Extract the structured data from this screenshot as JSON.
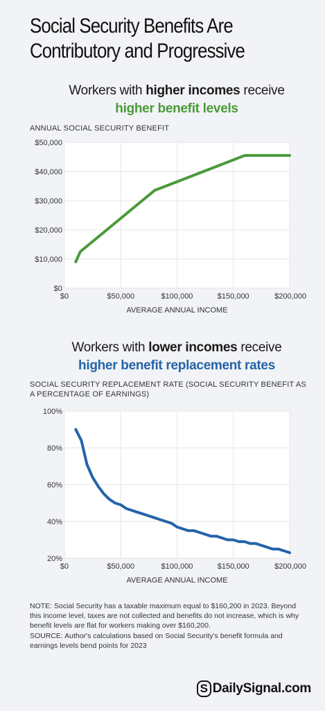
{
  "title": "Social Security Benefits Are Contributory and Progressive",
  "section1": {
    "subhead_pre": "Workers with ",
    "subhead_bold": "higher incomes",
    "subhead_post": " receive",
    "subhead_line2": "higher benefit levels",
    "axis_title": "ANNUAL SOCIAL SECURITY BENEFIT"
  },
  "section2": {
    "subhead_pre": "Workers with ",
    "subhead_bold": "lower incomes",
    "subhead_post": " receive",
    "subhead_line2": "higher benefit replacement rates",
    "axis_title": "SOCIAL SECURITY REPLACEMENT RATE (SOCIAL SECURITY BENEFIT AS A PERCENTAGE OF EARNINGS)"
  },
  "note": "NOTE: Social Security has a taxable maximum equal to $160,200 in 2023. Beyond this income level, taxes are not collected and benefits do not increase, which is why benefit levels are flat for workers making over $160,200.",
  "source": "SOURCE: Author's calculations based on Social Security's benefit formula and earnings levels bend points for 2023",
  "brand": {
    "mark": "S",
    "name": "DailySignal.com"
  },
  "colors": {
    "green": "#4b9a3a",
    "blue": "#2563a9",
    "grid": "#e6e6e6"
  },
  "chart_data": [
    {
      "type": "line",
      "title": "Workers with higher incomes receive higher benefit levels",
      "xlabel": "AVERAGE ANNUAL INCOME",
      "ylabel": "ANNUAL SOCIAL SECURITY BENEFIT",
      "xlim": [
        0,
        200000
      ],
      "ylim": [
        0,
        50000
      ],
      "x_ticks": [
        0,
        50000,
        100000,
        150000,
        200000
      ],
      "x_tick_labels": [
        "$0",
        "$50,000",
        "$100,000",
        "$150,000",
        "$200,000"
      ],
      "y_ticks": [
        0,
        10000,
        20000,
        30000,
        40000,
        50000
      ],
      "y_tick_labels": [
        "$0",
        "$10,000",
        "$20,000",
        "$30,000",
        "$40,000",
        "$50,000"
      ],
      "grid": true,
      "series": [
        {
          "color": "#4b9a3a",
          "points": [
            [
              10000,
              9000
            ],
            [
              14000,
              12500
            ],
            [
              80000,
              33500
            ],
            [
              160200,
              45500
            ],
            [
              200000,
              45500
            ]
          ]
        }
      ]
    },
    {
      "type": "line",
      "title": "Workers with lower incomes receive higher benefit replacement rates",
      "xlabel": "AVERAGE ANNUAL INCOME",
      "ylabel": "SOCIAL SECURITY REPLACEMENT RATE (SOCIAL SECURITY BENEFIT AS A PERCENTAGE OF EARNINGS)",
      "xlim": [
        0,
        200000
      ],
      "ylim": [
        20,
        100
      ],
      "x_ticks": [
        0,
        50000,
        100000,
        150000,
        200000
      ],
      "x_tick_labels": [
        "$0",
        "$50,000",
        "$100,000",
        "$150,000",
        "$200,000"
      ],
      "y_ticks": [
        20,
        40,
        60,
        80,
        100
      ],
      "y_tick_labels": [
        "20%",
        "40%",
        "60%",
        "80%",
        "100%"
      ],
      "grid": true,
      "series": [
        {
          "color": "#2563a9",
          "points": [
            [
              10000,
              90
            ],
            [
              15000,
              84
            ],
            [
              20000,
              71
            ],
            [
              25000,
              64
            ],
            [
              30000,
              59
            ],
            [
              35000,
              55
            ],
            [
              40000,
              52
            ],
            [
              45000,
              50
            ],
            [
              50000,
              49
            ],
            [
              55000,
              47
            ],
            [
              60000,
              46
            ],
            [
              65000,
              45
            ],
            [
              70000,
              44
            ],
            [
              75000,
              43
            ],
            [
              80000,
              42
            ],
            [
              85000,
              41
            ],
            [
              90000,
              40
            ],
            [
              95000,
              39
            ],
            [
              100000,
              37
            ],
            [
              105000,
              36
            ],
            [
              110000,
              35
            ],
            [
              115000,
              35
            ],
            [
              120000,
              34
            ],
            [
              125000,
              33
            ],
            [
              130000,
              32
            ],
            [
              135000,
              32
            ],
            [
              140000,
              31
            ],
            [
              145000,
              30
            ],
            [
              150000,
              30
            ],
            [
              155000,
              29
            ],
            [
              160000,
              29
            ],
            [
              165000,
              28
            ],
            [
              170000,
              28
            ],
            [
              175000,
              27
            ],
            [
              180000,
              26
            ],
            [
              185000,
              25
            ],
            [
              190000,
              25
            ],
            [
              195000,
              24
            ],
            [
              200000,
              23
            ]
          ]
        }
      ]
    }
  ]
}
